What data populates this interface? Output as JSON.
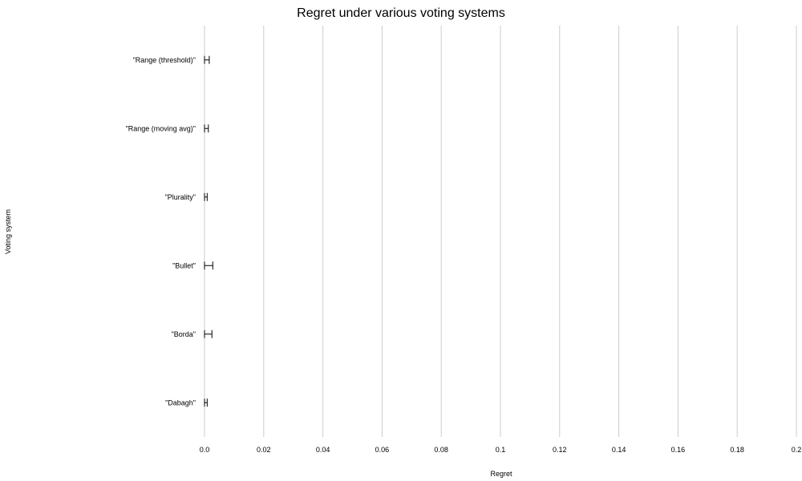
{
  "chart_data": {
    "type": "bar",
    "orientation": "horizontal",
    "title": "Regret under various voting systems",
    "xlabel": "Regret",
    "ylabel": "Voting system",
    "categories": [
      "\"Range (threshold)\"",
      "\"Range (moving avg)\"",
      "\"Plurality\"",
      "\"Bullet\"",
      "\"Borda\"",
      "\"Dabagh\""
    ],
    "values": [
      0.0008,
      0.0006,
      0.0004,
      0.0012,
      0.0011,
      0.0004
    ],
    "error_low": [
      0.0,
      0.0,
      0.0,
      0.0,
      0.0,
      0.0
    ],
    "error_high": [
      0.0016,
      0.0013,
      0.0009,
      0.0028,
      0.0025,
      0.0009
    ],
    "xlim": [
      0,
      0.2
    ],
    "xticks": [
      "0.0",
      "0.02",
      "0.04",
      "0.06",
      "0.08",
      "0.1",
      "0.12",
      "0.14",
      "0.16",
      "0.18",
      "0.2"
    ],
    "grid": true,
    "colors": {
      "grid": "#cccccc",
      "marks": "#000000"
    }
  }
}
